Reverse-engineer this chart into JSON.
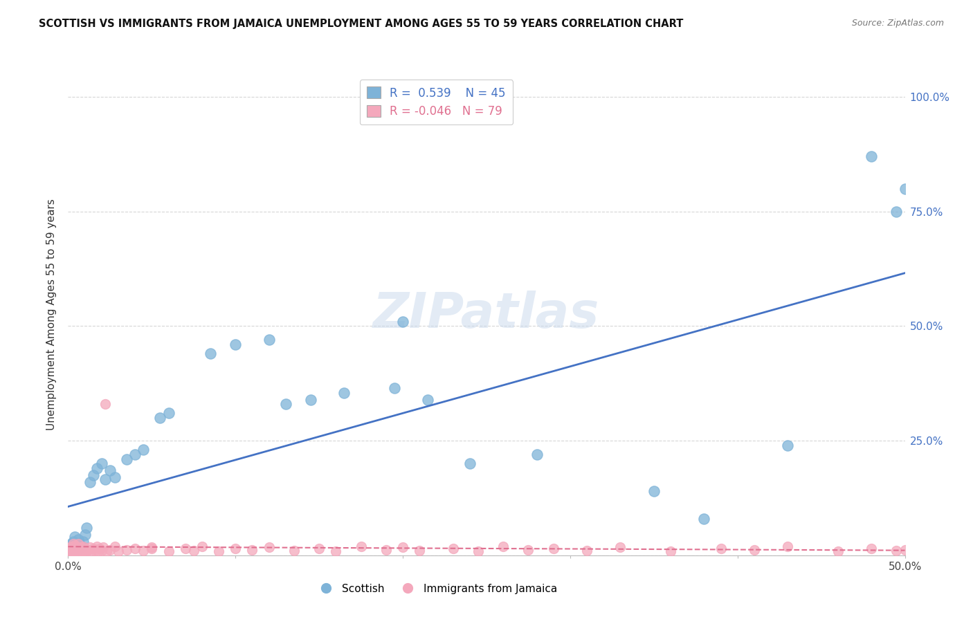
{
  "title": "SCOTTISH VS IMMIGRANTS FROM JAMAICA UNEMPLOYMENT AMONG AGES 55 TO 59 YEARS CORRELATION CHART",
  "source": "Source: ZipAtlas.com",
  "ylabel": "Unemployment Among Ages 55 to 59 years",
  "scottish_R": 0.539,
  "scottish_N": 45,
  "jamaica_R": -0.046,
  "jamaica_N": 79,
  "scottish_color": "#7EB3D8",
  "jamaica_color": "#F4A8BC",
  "scottish_line_color": "#4472C4",
  "jamaica_line_color": "#E07090",
  "background_color": "#FFFFFF",
  "watermark_color": "#C8D8EC",
  "xlim": [
    0.0,
    0.5
  ],
  "ylim": [
    0.0,
    1.05
  ],
  "scottish_x": [
    0.001,
    0.002,
    0.002,
    0.003,
    0.003,
    0.004,
    0.004,
    0.005,
    0.005,
    0.006,
    0.006,
    0.007,
    0.008,
    0.009,
    0.01,
    0.011,
    0.013,
    0.015,
    0.017,
    0.02,
    0.022,
    0.025,
    0.028,
    0.035,
    0.04,
    0.045,
    0.055,
    0.06,
    0.085,
    0.1,
    0.12,
    0.13,
    0.145,
    0.165,
    0.195,
    0.2,
    0.215,
    0.24,
    0.28,
    0.35,
    0.38,
    0.43,
    0.48,
    0.495,
    0.5
  ],
  "scottish_y": [
    0.02,
    0.015,
    0.025,
    0.01,
    0.03,
    0.018,
    0.04,
    0.012,
    0.022,
    0.015,
    0.035,
    0.025,
    0.02,
    0.03,
    0.045,
    0.06,
    0.16,
    0.175,
    0.19,
    0.2,
    0.165,
    0.185,
    0.17,
    0.21,
    0.22,
    0.23,
    0.3,
    0.31,
    0.44,
    0.46,
    0.47,
    0.33,
    0.34,
    0.355,
    0.365,
    0.51,
    0.34,
    0.2,
    0.22,
    0.14,
    0.08,
    0.24,
    0.87,
    0.75,
    0.8
  ],
  "jamaica_x": [
    0.001,
    0.001,
    0.001,
    0.002,
    0.002,
    0.002,
    0.002,
    0.003,
    0.003,
    0.003,
    0.003,
    0.004,
    0.004,
    0.004,
    0.005,
    0.005,
    0.005,
    0.006,
    0.006,
    0.006,
    0.007,
    0.007,
    0.008,
    0.008,
    0.009,
    0.009,
    0.01,
    0.01,
    0.011,
    0.012,
    0.013,
    0.014,
    0.015,
    0.016,
    0.017,
    0.018,
    0.019,
    0.02,
    0.021,
    0.022,
    0.023,
    0.025,
    0.028,
    0.03,
    0.035,
    0.04,
    0.045,
    0.05,
    0.06,
    0.07,
    0.075,
    0.08,
    0.09,
    0.1,
    0.11,
    0.12,
    0.135,
    0.15,
    0.16,
    0.175,
    0.19,
    0.2,
    0.21,
    0.23,
    0.245,
    0.26,
    0.275,
    0.29,
    0.31,
    0.33,
    0.36,
    0.39,
    0.41,
    0.43,
    0.46,
    0.48,
    0.495,
    0.5,
    0.05
  ],
  "jamaica_y": [
    0.008,
    0.012,
    0.018,
    0.006,
    0.01,
    0.015,
    0.02,
    0.007,
    0.012,
    0.018,
    0.025,
    0.008,
    0.015,
    0.022,
    0.006,
    0.012,
    0.02,
    0.008,
    0.014,
    0.025,
    0.006,
    0.015,
    0.008,
    0.018,
    0.01,
    0.02,
    0.006,
    0.015,
    0.008,
    0.012,
    0.018,
    0.008,
    0.015,
    0.01,
    0.02,
    0.008,
    0.015,
    0.01,
    0.018,
    0.33,
    0.008,
    0.012,
    0.02,
    0.008,
    0.012,
    0.015,
    0.01,
    0.018,
    0.008,
    0.015,
    0.01,
    0.02,
    0.008,
    0.015,
    0.012,
    0.018,
    0.01,
    0.015,
    0.008,
    0.02,
    0.012,
    0.018,
    0.01,
    0.015,
    0.008,
    0.02,
    0.012,
    0.015,
    0.01,
    0.018,
    0.008,
    0.015,
    0.012,
    0.02,
    0.008,
    0.015,
    0.01,
    0.012,
    0.015
  ]
}
